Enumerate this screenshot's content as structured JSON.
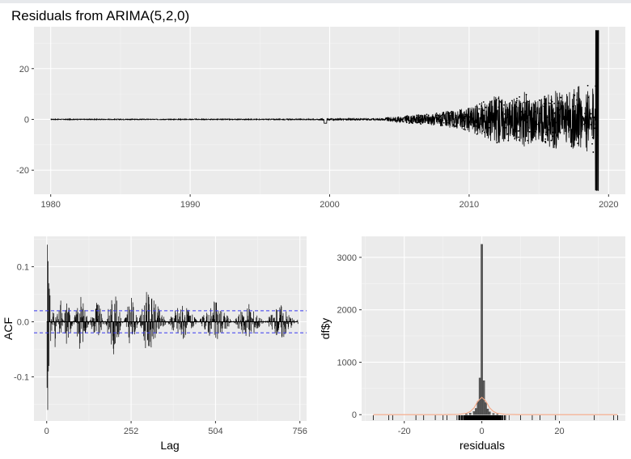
{
  "chart_data": [
    {
      "type": "line",
      "title": "Residuals from ARIMA(5,2,0)",
      "xlabel": "",
      "ylabel": "",
      "xlim": [
        1978.8,
        2021.2
      ],
      "ylim": [
        -29.5,
        36.5
      ],
      "x_ticks": [
        1980,
        1990,
        2000,
        2010,
        2020
      ],
      "y_ticks": [
        -20,
        0,
        20
      ],
      "grid": true,
      "series": [
        {
          "x": [
            1980,
            1985,
            1990,
            1995,
            1999,
            1999.7,
            2000,
            2003,
            2005,
            2007,
            2008,
            2009,
            2010,
            2011,
            2012,
            2013,
            2014,
            2015,
            2016,
            2017,
            2018,
            2018.5,
            2018.9,
            2019.1,
            2019.3
          ],
          "y": [
            0,
            0.05,
            -0.05,
            0.05,
            0.2,
            -1.5,
            0.6,
            0.4,
            1.2,
            2.0,
            3.0,
            3.5,
            5.0,
            7.0,
            10.0,
            8.0,
            11.0,
            8.0,
            12.0,
            10.0,
            14.0,
            -20.0,
            18.0,
            -28.0,
            35.0
          ]
        }
      ]
    },
    {
      "type": "bar",
      "title": "",
      "xlabel": "Lag",
      "ylabel": "ACF",
      "xlim": [
        -38,
        776
      ],
      "ylim": [
        -0.18,
        0.155
      ],
      "x_ticks": [
        0,
        252,
        504,
        756
      ],
      "y_ticks": [
        -0.1,
        0.0,
        0.1
      ],
      "confidence_band": 0.02,
      "grid": true,
      "series": [
        {
          "lags": [
            1,
            2,
            3,
            4,
            5,
            6,
            7,
            8,
            10,
            12,
            15,
            18,
            22,
            25,
            30,
            40,
            60,
            100,
            150,
            200,
            252,
            300,
            400,
            504,
            600,
            700,
            756
          ],
          "values": [
            -0.12,
            0.14,
            -0.16,
            0.11,
            -0.09,
            0.07,
            -0.08,
            0.06,
            -0.05,
            0.05,
            -0.04,
            0.04,
            -0.045,
            0.05,
            -0.04,
            0.05,
            -0.05,
            0.055,
            -0.045,
            0.06,
            -0.05,
            0.06,
            -0.04,
            0.04,
            -0.035,
            0.035,
            -0.01
          ]
        }
      ]
    },
    {
      "type": "bar",
      "title": "",
      "xlabel": "residuals",
      "ylabel": "df$y",
      "xlim": [
        -31,
        37
      ],
      "ylim": [
        -120,
        3400
      ],
      "x_ticks": [
        -20,
        0,
        20
      ],
      "y_ticks": [
        0,
        1000,
        2000,
        3000
      ],
      "grid": true,
      "histogram": {
        "bin_centers": [
          -4,
          -3,
          -2,
          -1.5,
          -1,
          -0.5,
          0,
          0.5,
          1,
          1.5,
          2,
          3,
          4
        ],
        "counts": [
          15,
          30,
          60,
          120,
          250,
          700,
          3250,
          650,
          230,
          110,
          55,
          25,
          12
        ]
      },
      "density_curve": {
        "x": [
          -28,
          -10,
          -6,
          -4,
          -3,
          -2,
          -1,
          0,
          1,
          2,
          3,
          4,
          6,
          10,
          35
        ],
        "y": [
          0,
          0,
          5,
          25,
          60,
          130,
          260,
          330,
          260,
          130,
          60,
          25,
          5,
          0,
          0
        ]
      },
      "rug_color": "#000000",
      "curve_color": "#f4a582"
    }
  ]
}
